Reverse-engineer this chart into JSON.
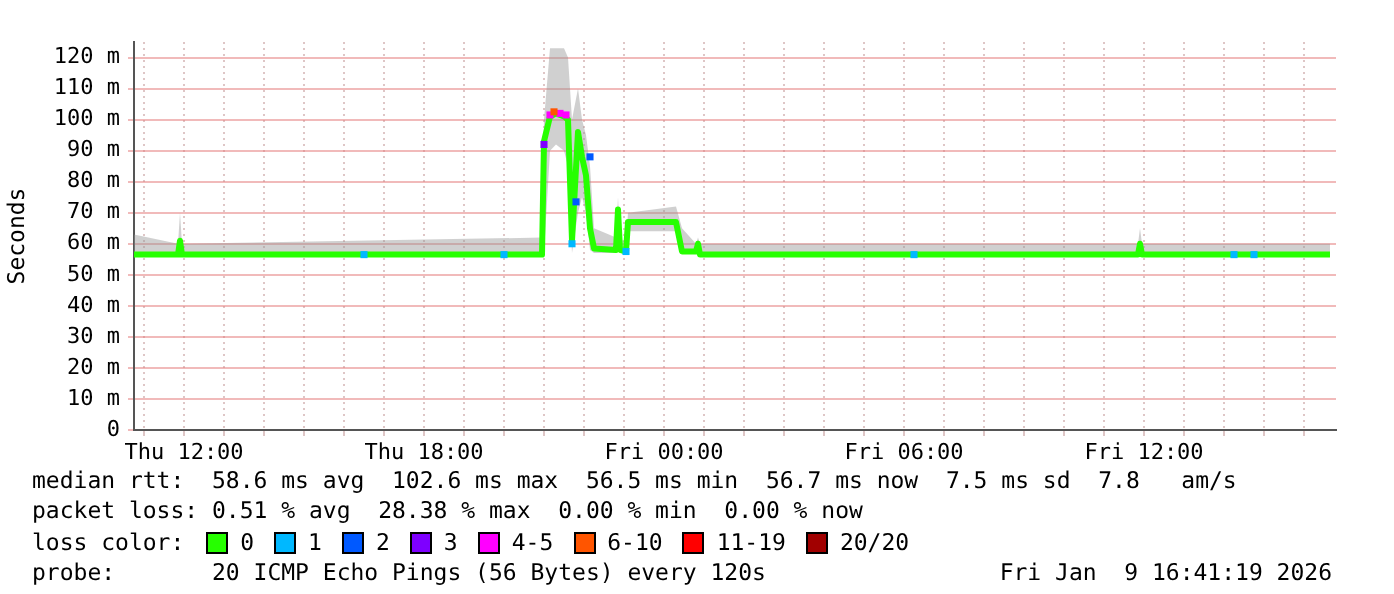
{
  "chart_data": {
    "type": "line",
    "ylabel": "Seconds",
    "legend_title": "loss color:",
    "legend": "bottom",
    "grid": true,
    "marker": "none",
    "line_style": "solid",
    "xlim": [
      "2026-01-08T10:45",
      "2026-01-09T16:48"
    ],
    "xticks": [
      {
        "value": "2026-01-08T11:00",
        "label": null
      },
      {
        "value": "2026-01-08T12:00",
        "label": "Thu 12:00"
      },
      {
        "value": "2026-01-08T13:00",
        "label": null
      },
      {
        "value": "2026-01-08T14:00",
        "label": null
      },
      {
        "value": "2026-01-08T15:00",
        "label": null
      },
      {
        "value": "2026-01-08T16:00",
        "label": null
      },
      {
        "value": "2026-01-08T17:00",
        "label": null
      },
      {
        "value": "2026-01-08T18:00",
        "label": "Thu 18:00"
      },
      {
        "value": "2026-01-08T19:00",
        "label": null
      },
      {
        "value": "2026-01-08T20:00",
        "label": null
      },
      {
        "value": "2026-01-08T21:00",
        "label": null
      },
      {
        "value": "2026-01-08T22:00",
        "label": null
      },
      {
        "value": "2026-01-08T23:00",
        "label": null
      },
      {
        "value": "2026-01-09T00:00",
        "label": "Fri 00:00"
      },
      {
        "value": "2026-01-09T01:00",
        "label": null
      },
      {
        "value": "2026-01-09T02:00",
        "label": null
      },
      {
        "value": "2026-01-09T03:00",
        "label": null
      },
      {
        "value": "2026-01-09T04:00",
        "label": null
      },
      {
        "value": "2026-01-09T05:00",
        "label": null
      },
      {
        "value": "2026-01-09T06:00",
        "label": "Fri 06:00"
      },
      {
        "value": "2026-01-09T07:00",
        "label": null
      },
      {
        "value": "2026-01-09T08:00",
        "label": null
      },
      {
        "value": "2026-01-09T09:00",
        "label": null
      },
      {
        "value": "2026-01-09T10:00",
        "label": null
      },
      {
        "value": "2026-01-09T11:00",
        "label": null
      },
      {
        "value": "2026-01-09T12:00",
        "label": "Fri 12:00"
      },
      {
        "value": "2026-01-09T13:00",
        "label": null
      },
      {
        "value": "2026-01-09T14:00",
        "label": null
      },
      {
        "value": "2026-01-09T15:00",
        "label": null
      },
      {
        "value": "2026-01-09T16:00",
        "label": null
      }
    ],
    "ylim": [
      0,
      125
    ],
    "yticks": [
      0,
      {
        "value": 10,
        "label": "10 m"
      },
      {
        "value": 20,
        "label": "20 m"
      },
      {
        "value": 30,
        "label": "30 m"
      },
      {
        "value": 40,
        "label": "40 m"
      },
      {
        "value": 50,
        "label": "50 m"
      },
      {
        "value": 60,
        "label": "60 m"
      },
      {
        "value": 70,
        "label": "70 m"
      },
      {
        "value": 80,
        "label": "80 m"
      },
      {
        "value": 90,
        "label": "90 m"
      },
      {
        "value": 100,
        "label": "100 m"
      },
      {
        "value": 110,
        "label": "110 m"
      },
      {
        "value": 120,
        "label": "120 m"
      }
    ],
    "series": [
      {
        "name": "0",
        "color": "#26ff00",
        "x": [
          "2026-01-08T10:45",
          "2026-01-08T11:51",
          "2026-01-08T11:54",
          "2026-01-08T11:57",
          "2026-01-08T20:57",
          "2026-01-08T21:00",
          "2026-01-08T21:09",
          "2026-01-08T21:18",
          "2026-01-08T21:30",
          "2026-01-08T21:36",
          "2026-01-08T21:42",
          "2026-01-08T21:51",
          "2026-01-08T21:57",
          "2026-01-08T22:03",
          "2026-01-08T22:09",
          "2026-01-08T22:15",
          "2026-01-08T22:48",
          "2026-01-08T22:51",
          "2026-01-08T22:54",
          "2026-01-08T23:03",
          "2026-01-08T23:06",
          "2026-01-09T00:18",
          "2026-01-09T00:27",
          "2026-01-09T00:48",
          "2026-01-09T00:51",
          "2026-01-09T00:54",
          "2026-01-09T11:51",
          "2026-01-09T11:54",
          "2026-01-09T11:57",
          "2026-01-09T16:39"
        ],
        "values": [
          56.5,
          56.5,
          61,
          56.5,
          56.5,
          93,
          101,
          102,
          101,
          100,
          61,
          96,
          88,
          82,
          65,
          58.5,
          58,
          71,
          58,
          57.5,
          67,
          67,
          57.5,
          57.5,
          60,
          56.5,
          56.5,
          60,
          56.5,
          56.5
        ],
        "lower": [
          56,
          56,
          57,
          56,
          56,
          57,
          90,
          92,
          90,
          85,
          57,
          70,
          75,
          70,
          58,
          57,
          57,
          58,
          57,
          57,
          64,
          64,
          57,
          57,
          57,
          56,
          56,
          57,
          56,
          56
        ],
        "upper": [
          63,
          60,
          70,
          60,
          62,
          100,
          123,
          123,
          123,
          120,
          100,
          110,
          100,
          95,
          85,
          65,
          62,
          75,
          62,
          60,
          70,
          72,
          65,
          60,
          62,
          60,
          60,
          65,
          60,
          60
        ]
      },
      {
        "name": "1",
        "type": "scatter",
        "marker": "square",
        "color": "#00b8ff",
        "x": [
          "2026-01-08T16:30",
          "2026-01-08T20:00",
          "2026-01-08T21:42",
          "2026-01-08T23:03",
          "2026-01-09T06:15",
          "2026-01-09T14:15",
          "2026-01-09T14:45"
        ],
        "values": [
          56.5,
          56.5,
          60,
          57.5,
          56.5,
          56.5,
          56.5
        ]
      },
      {
        "name": "2",
        "type": "scatter",
        "marker": "square",
        "color": "#0059ff",
        "x": [
          "2026-01-08T21:48",
          "2026-01-08T22:09"
        ],
        "values": [
          73.5,
          88
        ]
      },
      {
        "name": "3",
        "type": "scatter",
        "marker": "square",
        "color": "#7e00ff",
        "x": [
          "2026-01-08T21:00"
        ],
        "values": [
          92
        ]
      },
      {
        "name": "4-5",
        "type": "scatter",
        "marker": "square",
        "color": "#ff00ff",
        "x": [
          "2026-01-08T21:09",
          "2026-01-08T21:24",
          "2026-01-08T21:33"
        ],
        "values": [
          101.5,
          102,
          101.5
        ]
      },
      {
        "name": "6-10",
        "type": "scatter",
        "marker": "square",
        "color": "#ff5500",
        "x": [
          "2026-01-08T21:15"
        ],
        "values": [
          102.5
        ]
      },
      {
        "name": "11-19",
        "type": "scatter",
        "marker": "square",
        "color": "#ff0000"
      },
      {
        "name": "20/20",
        "type": "scatter",
        "marker": "square",
        "color": "#a10000"
      }
    ],
    "annotations": [
      "median rtt:  58.6 ms avg  102.6 ms max  56.5 ms min  56.7 ms now  7.5 ms sd  7.8   am/s",
      "packet loss: 0.51 % avg  28.38 % max  0.00 % min  0.00 % now",
      "probe:       20 ICMP Echo Pings (56 Bytes) every 120s",
      "Fri Jan  9 16:41:19 2026"
    ]
  }
}
